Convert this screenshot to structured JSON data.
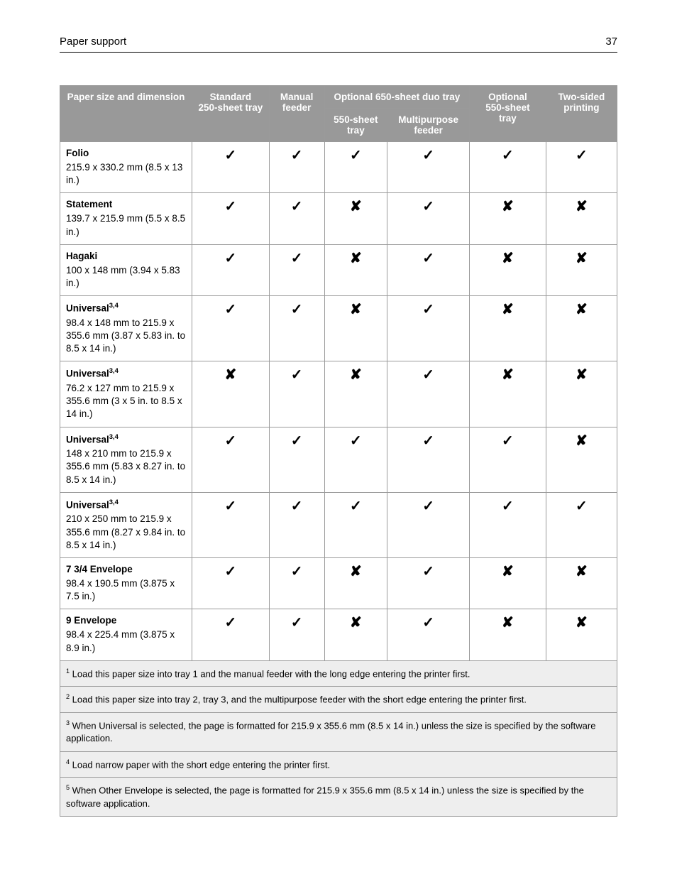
{
  "page": {
    "running_head_left": "Paper support",
    "running_head_right": "37"
  },
  "table": {
    "header_row1": {
      "col0": "Paper size and dimension",
      "col1": "Standard 250‑sheet tray",
      "col2": "Manual feeder",
      "col3": "Optional 650‑sheet duo tray",
      "col4": "Optional 550‑sheet tray",
      "col5": "Two‑sided printing"
    },
    "header_row2": {
      "col3a": "550‑sheet tray",
      "col3b": "Multipurpose feeder"
    },
    "rows": [
      {
        "name": "Folio",
        "sup": "",
        "dim": "215.9 x 330.2 mm (8.5 x 13 in.)",
        "v": [
          "✓",
          "✓",
          "✓",
          "✓",
          "✓",
          "✓"
        ]
      },
      {
        "name": "Statement",
        "sup": "",
        "dim": "139.7 x 215.9 mm (5.5 x 8.5 in.)",
        "v": [
          "✓",
          "✓",
          "✘",
          "✓",
          "✘",
          "✘"
        ]
      },
      {
        "name": "Hagaki",
        "sup": "",
        "dim": "100 x 148 mm (3.94 x 5.83 in.)",
        "v": [
          "✓",
          "✓",
          "✘",
          "✓",
          "✘",
          "✘"
        ]
      },
      {
        "name": "Universal",
        "sup": "3,4",
        "dim": "98.4 x 148 mm to 215.9 x 355.6 mm (3.87 x 5.83 in. to 8.5 x 14 in.)",
        "v": [
          "✓",
          "✓",
          "✘",
          "✓",
          "✘",
          "✘"
        ]
      },
      {
        "name": "Universal",
        "sup": "3,4",
        "dim": "76.2 x 127 mm to 215.9 x 355.6 mm (3 x 5 in. to 8.5 x 14 in.)",
        "v": [
          "✘",
          "✓",
          "✘",
          "✓",
          "✘",
          "✘"
        ]
      },
      {
        "name": "Universal",
        "sup": "3,4",
        "dim": "148 x 210 mm to 215.9 x 355.6 mm (5.83 x 8.27 in. to 8.5 x 14 in.)",
        "v": [
          "✓",
          "✓",
          "✓",
          "✓",
          "✓",
          "✘"
        ]
      },
      {
        "name": "Universal",
        "sup": "3,4",
        "dim": "210 x 250 mm to 215.9 x 355.6 mm (8.27 x 9.84 in. to 8.5 x 14 in.)",
        "v": [
          "✓",
          "✓",
          "✓",
          "✓",
          "✓",
          "✓"
        ]
      },
      {
        "name": "7 3/4 Envelope",
        "sup": "",
        "dim": "98.4 x 190.5 mm (3.875 x 7.5 in.)",
        "v": [
          "✓",
          "✓",
          "✘",
          "✓",
          "✘",
          "✘"
        ]
      },
      {
        "name": "9 Envelope",
        "sup": "",
        "dim": "98.4 x 225.4 mm (3.875 x 8.9 in.)",
        "v": [
          "✓",
          "✓",
          "✘",
          "✓",
          "✘",
          "✘"
        ]
      }
    ],
    "footnotes": [
      {
        "num": "1",
        "text": "Load this paper size into tray 1 and the manual feeder with the long edge entering the printer first."
      },
      {
        "num": "2",
        "text": "Load this paper size into tray 2, tray 3, and the multipurpose feeder with the short edge entering the printer first."
      },
      {
        "num": "3",
        "text": "When Universal is selected, the page is formatted for 215.9 x 355.6 mm (8.5 x 14 in.) unless the size is specified by the software application."
      },
      {
        "num": "4",
        "text": "Load narrow paper with the short edge entering the printer first."
      },
      {
        "num": "5",
        "text": "When Other Envelope is selected, the page is formatted for 215.9 x 355.6 mm (8.5 x 14 in.) unless the size is specified by the software application."
      }
    ]
  },
  "colors": {
    "header_bg": "#999999",
    "header_text": "#ffffff",
    "border": "#9a9a9a",
    "footnote_bg": "#eeeeee"
  }
}
